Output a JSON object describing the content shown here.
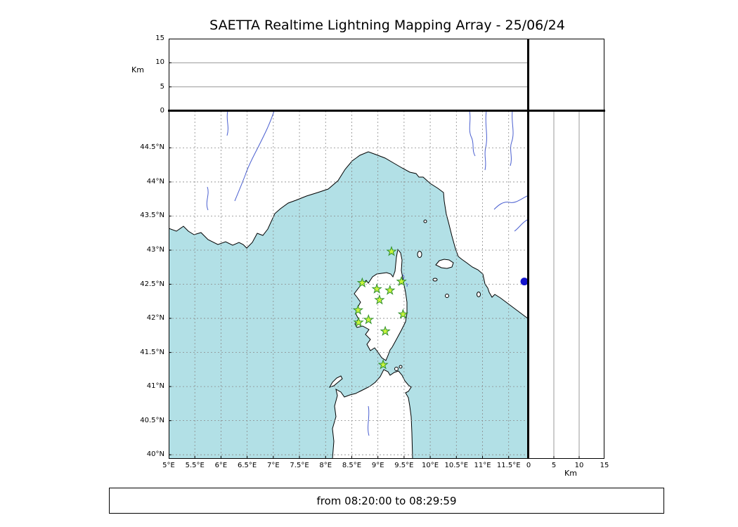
{
  "title": "SAETTA Realtime Lightning Mapping Array - 25/06/24",
  "status": {
    "text": "from 08:20:00 to 08:29:59"
  },
  "map": {
    "lon_range": [
      5.0,
      11.88
    ],
    "lat_range": [
      39.94,
      45.04
    ],
    "lon_ticks": [
      {
        "v": 5,
        "label": "5°E"
      },
      {
        "v": 5.5,
        "label": "5.5°E"
      },
      {
        "v": 6,
        "label": "6°E"
      },
      {
        "v": 6.5,
        "label": "6.5°E"
      },
      {
        "v": 7,
        "label": "7°E"
      },
      {
        "v": 7.5,
        "label": "7.5°E"
      },
      {
        "v": 8,
        "label": "8°E"
      },
      {
        "v": 8.5,
        "label": "8.5°E"
      },
      {
        "v": 9,
        "label": "9°E"
      },
      {
        "v": 9.5,
        "label": "9.5°E"
      },
      {
        "v": 10,
        "label": "10°E"
      },
      {
        "v": 10.5,
        "label": "10.5°E"
      },
      {
        "v": 11,
        "label": "11°E"
      },
      {
        "v": 11.5,
        "label": "11.5°E"
      }
    ],
    "lat_ticks": [
      {
        "v": 44.5,
        "label": "44.5°N"
      },
      {
        "v": 44,
        "label": "44°N"
      },
      {
        "v": 43.5,
        "label": "43.5°N"
      },
      {
        "v": 43,
        "label": "43°N"
      },
      {
        "v": 42.5,
        "label": "42.5°N"
      },
      {
        "v": 42,
        "label": "42°N"
      },
      {
        "v": 41.5,
        "label": "41.5°N"
      },
      {
        "v": 41,
        "label": "41°N"
      },
      {
        "v": 40.5,
        "label": "40.5°N"
      },
      {
        "v": 40,
        "label": "40°N"
      }
    ]
  },
  "altitude_axis": {
    "label": "Km",
    "ticks": [
      0,
      5,
      10,
      15
    ],
    "range": [
      0,
      15
    ],
    "gridlines": [
      5,
      10
    ]
  },
  "chart_data": {
    "type": "scatter",
    "title": "SAETTA Realtime Lightning Mapping Array - 25/06/24",
    "xlim": [
      5.0,
      11.88
    ],
    "ylim": [
      39.94,
      45.04
    ],
    "x_ticks_deg_e": [
      5,
      5.5,
      6,
      6.5,
      7,
      7.5,
      8,
      8.5,
      9,
      9.5,
      10,
      10.5,
      11,
      11.5
    ],
    "y_ticks_deg_n": [
      40,
      40.5,
      41,
      41.5,
      42,
      42.5,
      43,
      43.5,
      44,
      44.5
    ],
    "altitude_km_axis": {
      "range": [
        0,
        15
      ],
      "ticks": [
        0,
        5,
        10,
        15
      ],
      "gridlines": [
        5,
        10
      ]
    },
    "series": [
      {
        "name": "lma-stations",
        "marker": "star",
        "points": [
          {
            "lon": 9.26,
            "lat": 42.98
          },
          {
            "lon": 8.7,
            "lat": 42.52
          },
          {
            "lon": 8.98,
            "lat": 42.43
          },
          {
            "lon": 9.23,
            "lat": 42.41
          },
          {
            "lon": 9.45,
            "lat": 42.54
          },
          {
            "lon": 9.03,
            "lat": 42.27
          },
          {
            "lon": 8.62,
            "lat": 42.12
          },
          {
            "lon": 9.48,
            "lat": 42.06
          },
          {
            "lon": 8.82,
            "lat": 41.98
          },
          {
            "lon": 8.63,
            "lat": 41.94
          },
          {
            "lon": 9.14,
            "lat": 41.81
          },
          {
            "lon": 9.1,
            "lat": 41.32
          }
        ]
      },
      {
        "name": "event-marker",
        "marker": "circle",
        "points": [
          {
            "lon": 11.8,
            "lat": 42.54
          }
        ]
      }
    ],
    "time_window": "from 08:20:00 to 08:29:59"
  },
  "colors": {
    "sea": "#b2e0e6",
    "land": "#ffffff",
    "coast": "#000000",
    "grid": "#8a8a8a",
    "river": "#4a5fd0",
    "station_fill": "#c8f53c",
    "station_edge": "#2f8f2f",
    "event_marker": "#1414cc"
  }
}
